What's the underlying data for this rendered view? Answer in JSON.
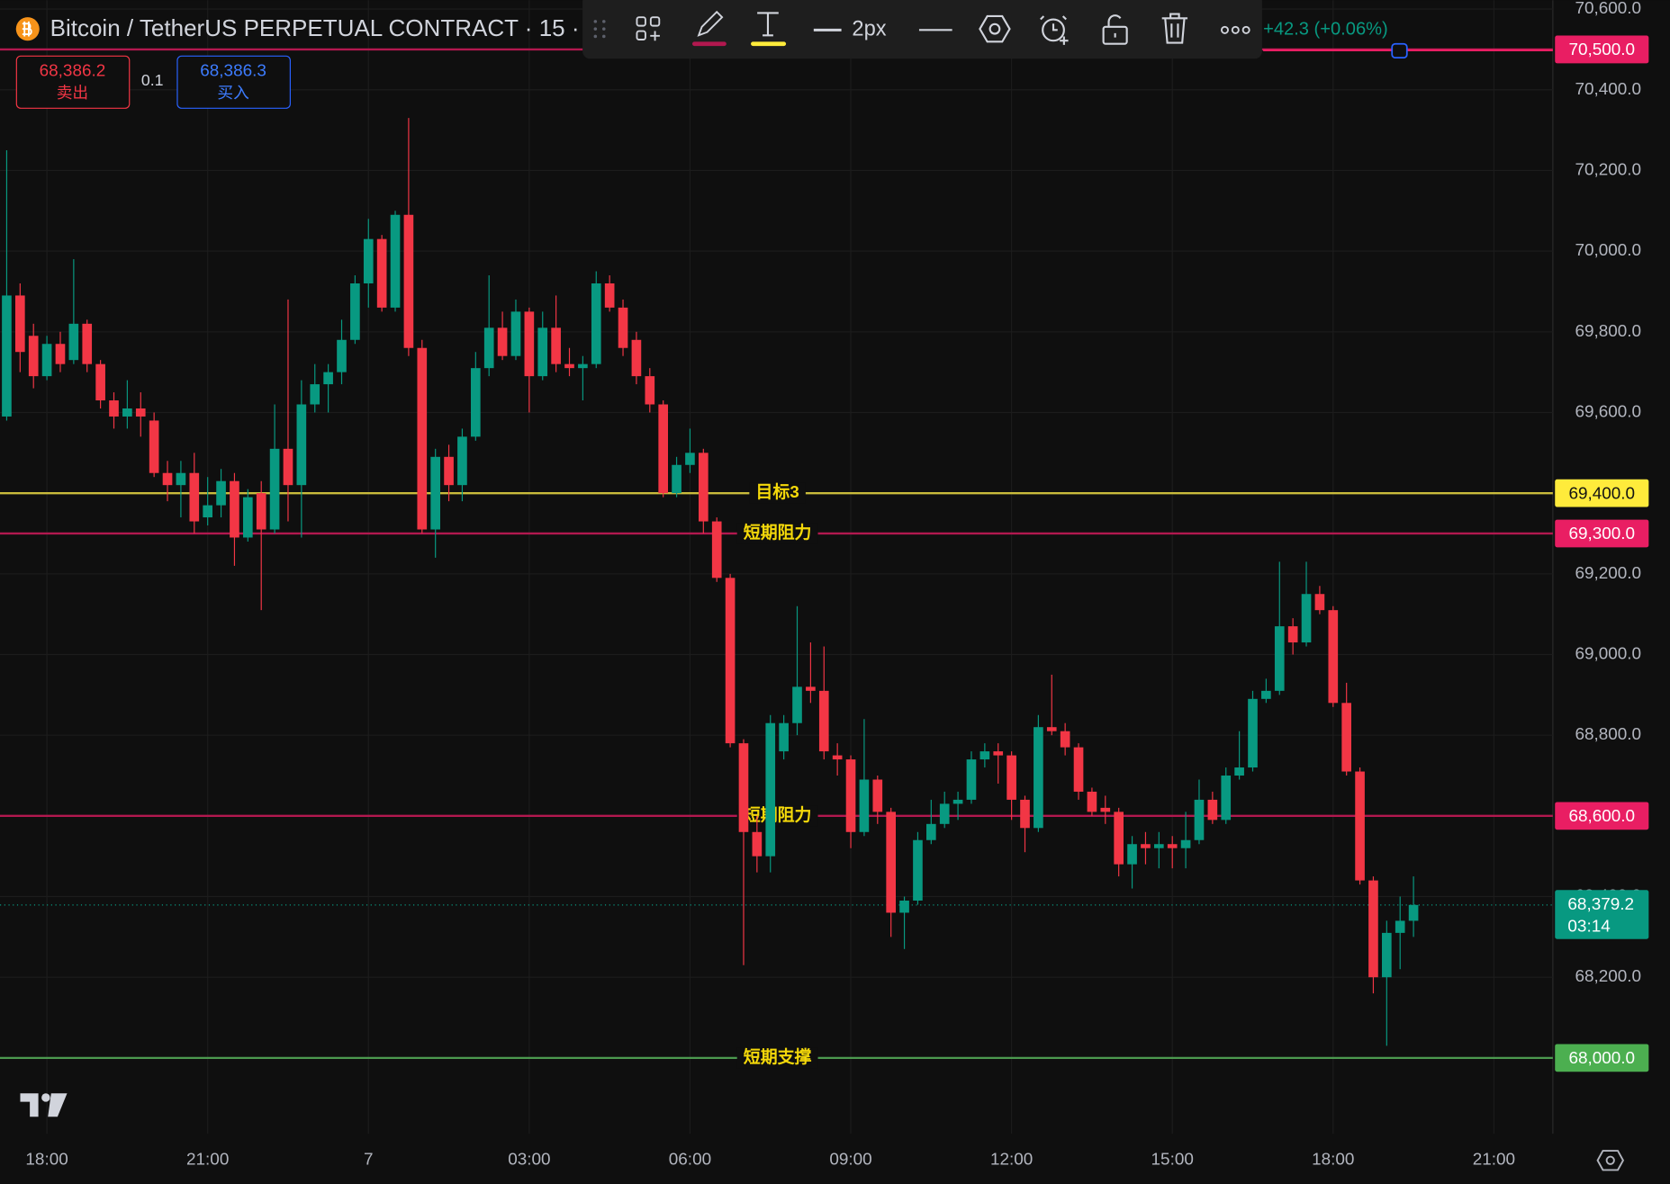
{
  "chart_data": {
    "type": "candlestick",
    "title": "Bitcoin / TetherUS PERPETUAL CONTRACT · 15 ·",
    "change": "+42.3 (+0.06%)",
    "sell": {
      "price": "68,386.2",
      "text": "卖出"
    },
    "quantity": 0.1,
    "buy": {
      "price": "68,386.3",
      "text": "买入"
    },
    "toolbar": {
      "line_width": "2px"
    },
    "grid": true,
    "xlim": [
      -0.5,
      115.4
    ],
    "xticks": [
      {
        "value": 3,
        "label": "18:00"
      },
      {
        "value": 15,
        "label": "21:00"
      },
      {
        "value": 27,
        "label": "7"
      },
      {
        "value": 39,
        "label": "03:00"
      },
      {
        "value": 51,
        "label": "06:00"
      },
      {
        "value": 63,
        "label": "09:00"
      },
      {
        "value": 75,
        "label": "12:00"
      },
      {
        "value": 87,
        "label": "15:00"
      },
      {
        "value": 99,
        "label": "18:00"
      },
      {
        "value": 111,
        "label": "21:00"
      }
    ],
    "ylim": [
      67812,
      70622
    ],
    "yticks": [
      {
        "value": 70600,
        "label": "70,600.0"
      },
      {
        "value": 70400,
        "label": "70,400.0"
      },
      {
        "value": 70200,
        "label": "70,200.0"
      },
      {
        "value": 70000,
        "label": "70,000.0"
      },
      {
        "value": 69800,
        "label": "69,800.0"
      },
      {
        "value": 69600,
        "label": "69,600.0"
      },
      {
        "value": 69400,
        "label": "69,400.0"
      },
      {
        "value": 69200,
        "label": "69,200.0"
      },
      {
        "value": 69000,
        "label": "69,000.0"
      },
      {
        "value": 68800,
        "label": "68,800.0"
      },
      {
        "value": 68600,
        "label": "68,600.0"
      },
      {
        "value": 68400,
        "label": "68,400.0"
      },
      {
        "value": 68200,
        "label": "68,200.0"
      },
      {
        "value": 68000,
        "label": "68,000.0"
      }
    ],
    "up_color": "#089981",
    "down_color": "#f23645",
    "open": [
      69590,
      69890,
      69790,
      69690,
      69770,
      69730,
      69820,
      69720,
      69630,
      69590,
      69610,
      69580,
      69450,
      69420,
      69450,
      69340,
      69370,
      69430,
      69290,
      69400,
      69310,
      69510,
      69420,
      69620,
      69670,
      69700,
      69780,
      69920,
      70030,
      69860,
      70090,
      69760,
      69310,
      69490,
      69420,
      69540,
      69710,
      69810,
      69740,
      69850,
      69690,
      69810,
      69720,
      69710,
      69720,
      69920,
      69860,
      69780,
      69690,
      69620,
      69400,
      69470,
      69500,
      69330,
      69190,
      68780,
      68560,
      68500,
      68760,
      68830,
      68920,
      68910,
      68750,
      68740,
      68560,
      68690,
      68610,
      68360,
      68390,
      68540,
      68580,
      68630,
      68640,
      68740,
      68760,
      68750,
      68640,
      68570,
      68820,
      68810,
      68770,
      68660,
      68620,
      68610,
      68480,
      68530,
      68520,
      68530,
      68520,
      68540,
      68640,
      68590,
      68700,
      68720,
      68890,
      68910,
      69070,
      69030,
      69150,
      69110,
      68880,
      68710,
      68440,
      68200,
      68310,
      68340
    ],
    "high": [
      70250,
      69920,
      69820,
      69790,
      69800,
      69980,
      69830,
      69730,
      69650,
      69680,
      69650,
      69600,
      69480,
      69480,
      69500,
      69440,
      69460,
      69450,
      69410,
      69430,
      69620,
      69880,
      69680,
      69720,
      69720,
      69830,
      69940,
      70080,
      70040,
      70100,
      70330,
      69780,
      69510,
      69520,
      69560,
      69750,
      69940,
      69850,
      69880,
      69860,
      69850,
      69890,
      69760,
      69740,
      69950,
      69940,
      69880,
      69800,
      69710,
      69630,
      69490,
      69560,
      69510,
      69340,
      69200,
      68790,
      68600,
      68850,
      68850,
      69120,
      69030,
      69020,
      68780,
      68750,
      68840,
      68700,
      68620,
      68400,
      68560,
      68640,
      68660,
      68660,
      68760,
      68780,
      68780,
      68760,
      68650,
      68850,
      68950,
      68830,
      68780,
      68670,
      68650,
      68620,
      68550,
      68560,
      68560,
      68550,
      68610,
      68690,
      68660,
      68720,
      68810,
      68910,
      68940,
      69230,
      69090,
      69230,
      69170,
      69120,
      68930,
      68720,
      68450,
      68340,
      68400,
      68450
    ],
    "low": [
      69580,
      69700,
      69660,
      69680,
      69700,
      69720,
      69700,
      69610,
      69560,
      69560,
      69540,
      69440,
      69380,
      69340,
      69300,
      69320,
      69340,
      69220,
      69280,
      69110,
      69300,
      69330,
      69290,
      69600,
      69600,
      69670,
      69770,
      69860,
      69850,
      69850,
      69740,
      69300,
      69240,
      69380,
      69380,
      69530,
      69690,
      69730,
      69730,
      69600,
      69680,
      69700,
      69690,
      69630,
      69710,
      69850,
      69740,
      69670,
      69600,
      69390,
      69390,
      69450,
      69300,
      69180,
      68770,
      68230,
      68460,
      68460,
      68740,
      68800,
      68880,
      68740,
      68700,
      68520,
      68550,
      68580,
      68300,
      68270,
      68380,
      68530,
      68570,
      68590,
      68630,
      68720,
      68680,
      68590,
      68510,
      68560,
      68800,
      68750,
      68640,
      68600,
      68580,
      68450,
      68420,
      68480,
      68470,
      68470,
      68470,
      68530,
      68580,
      68580,
      68690,
      68710,
      68880,
      68900,
      69000,
      69020,
      69100,
      68870,
      68700,
      68430,
      68160,
      68030,
      68220,
      68300
    ],
    "close": [
      69890,
      69750,
      69690,
      69770,
      69720,
      69820,
      69720,
      69630,
      69590,
      69610,
      69590,
      69450,
      69420,
      69450,
      69330,
      69370,
      69430,
      69290,
      69390,
      69310,
      69510,
      69420,
      69620,
      69670,
      69700,
      69780,
      69920,
      70030,
      69860,
      70090,
      69760,
      69310,
      69490,
      69420,
      69540,
      69710,
      69810,
      69740,
      69850,
      69690,
      69810,
      69720,
      69710,
      69720,
      69920,
      69860,
      69760,
      69690,
      69620,
      69400,
      69470,
      69500,
      69330,
      69190,
      68780,
      68560,
      68500,
      68830,
      68830,
      68920,
      68910,
      68760,
      68740,
      68560,
      68690,
      68610,
      68360,
      68390,
      68540,
      68580,
      68630,
      68640,
      68740,
      68760,
      68750,
      68640,
      68570,
      68820,
      68810,
      68770,
      68660,
      68610,
      68610,
      68480,
      68530,
      68520,
      68530,
      68520,
      68540,
      68640,
      68590,
      68700,
      68720,
      68890,
      68910,
      69070,
      69030,
      69150,
      69110,
      68880,
      68710,
      68440,
      68200,
      68310,
      68340,
      68379.2
    ],
    "levels": [
      {
        "value": 70500,
        "label": "70,500.0",
        "color": "#e91e63"
      },
      {
        "value": 69400,
        "label": "69,400.0",
        "color": "#ffeb3b",
        "text": "目标3"
      },
      {
        "value": 69300,
        "label": "69,300.0",
        "color": "#e91e63",
        "text": "短期阻力"
      },
      {
        "value": 68600,
        "label": "68,600.0",
        "color": "#e91e63",
        "text": "短期阻力"
      },
      {
        "value": 68000,
        "label": "68,000.0",
        "color": "#4caf50",
        "text": "短期支撑"
      }
    ],
    "last_price": {
      "value": 68379.2,
      "label": "68,379.2",
      "countdown": "03:14"
    }
  }
}
